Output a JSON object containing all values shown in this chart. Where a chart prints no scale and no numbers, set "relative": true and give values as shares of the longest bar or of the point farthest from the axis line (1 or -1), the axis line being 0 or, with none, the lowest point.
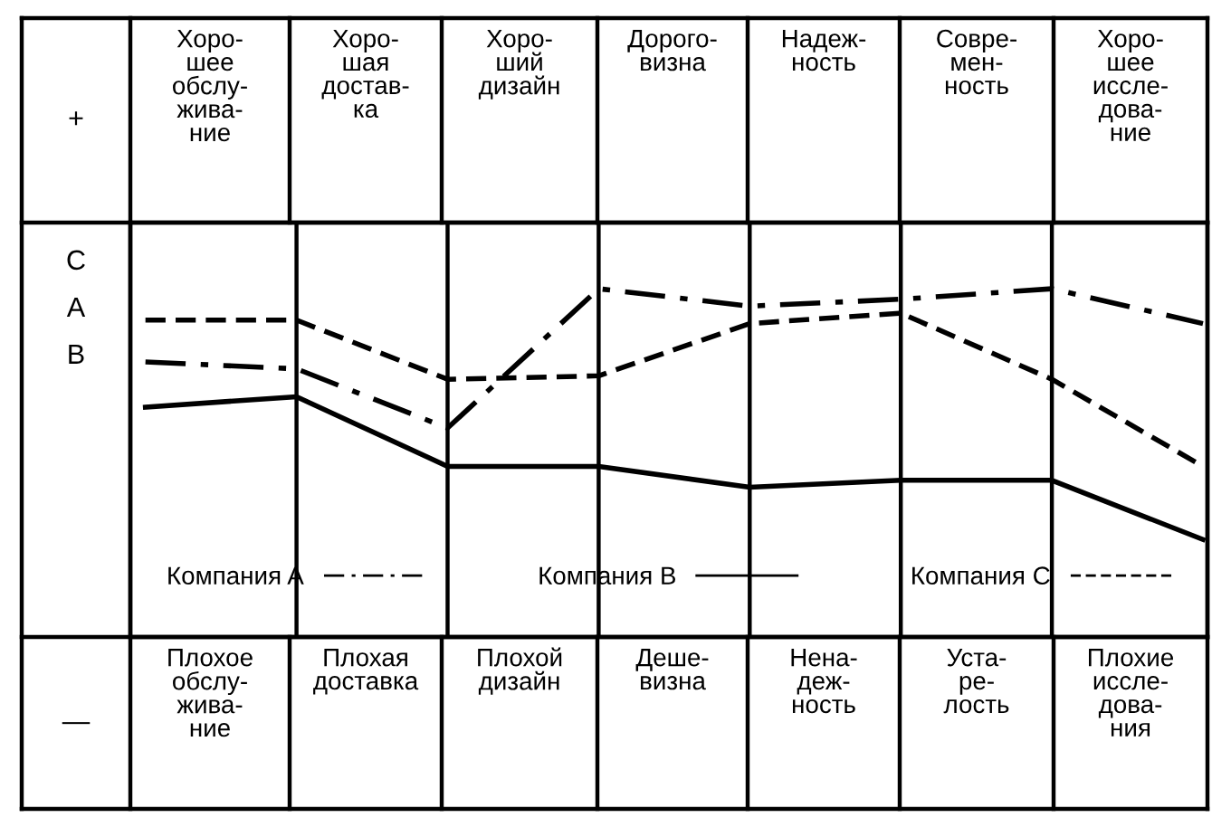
{
  "chart_data": {
    "type": "line",
    "relative": true,
    "categories": [
      null,
      null,
      null,
      null,
      null,
      null,
      null,
      null
    ],
    "series": [
      {
        "name": "Компания A",
        "color": "#000000",
        "line_style": "dashdot",
        "values": [
          0.79,
          0.77,
          0.6,
          1.0,
          0.95,
          0.97,
          1.0,
          0.9
        ]
      },
      {
        "name": "Компания B",
        "color": "#000000",
        "line_style": "solid",
        "values": [
          0.66,
          0.69,
          0.49,
          0.49,
          0.43,
          0.45,
          0.45,
          0.28
        ]
      },
      {
        "name": "Компания C",
        "color": "#000000",
        "line_style": "dashed",
        "values": [
          0.91,
          0.91,
          0.74,
          0.75,
          0.9,
          0.93,
          0.74,
          0.49
        ]
      }
    ],
    "legend": "bottom",
    "grid": "x",
    "tick_labels": false,
    "annotations": [
      "+",
      "Хоро-\nшее\nобслу-\nжива-\nние",
      "Хоро-\nшая\nдостав-\nка",
      "Хоро-\nший\nдизайн",
      "Дорого-\nвизна",
      "Надеж-\nность",
      "Совре-\nмен-\nность",
      "Хоро-\nшее\nиссле-\nдова-\nние",
      "—",
      "Плохое\nобслу-\nжива-\nние",
      "Плохая\nдоставка",
      "Плохой\nдизайн",
      "Деше-\nвизна",
      "Нена-\nдеж-\nность",
      "Уста-\nре-\nлость",
      "Плохие\nиссле-\nдова-\nния",
      "C",
      "A",
      "B"
    ]
  }
}
